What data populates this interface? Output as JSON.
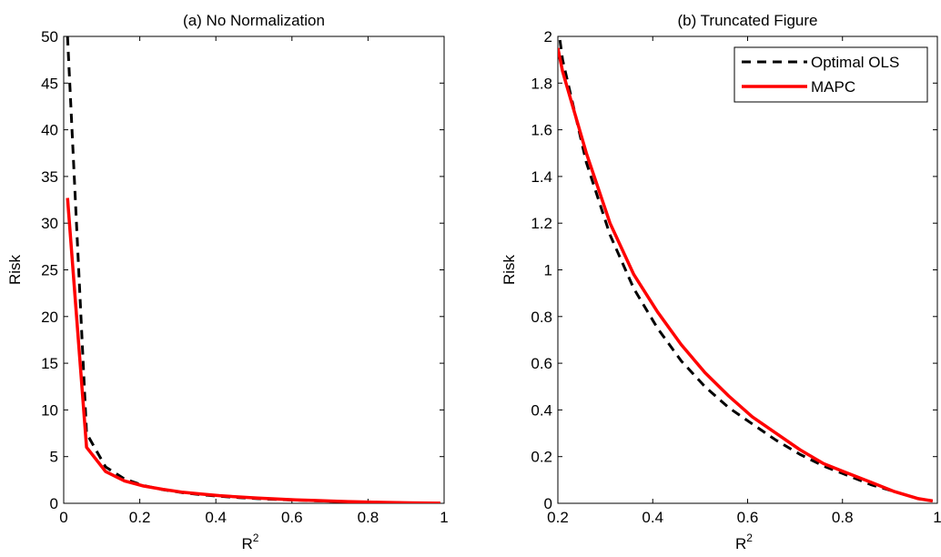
{
  "chart_data": [
    {
      "type": "line",
      "title": "(a) No Normalization",
      "xlabel": "R",
      "xlabel_superscript": "2",
      "ylabel": "Risk",
      "xlim": [
        0,
        1
      ],
      "ylim": [
        0,
        50
      ],
      "xticks": [
        0,
        0.2,
        0.4,
        0.6,
        0.8,
        1
      ],
      "xtick_labels": [
        "0",
        "0.2",
        "0.4",
        "0.6",
        "0.8",
        "1"
      ],
      "yticks": [
        0,
        5,
        10,
        15,
        20,
        25,
        30,
        35,
        40,
        45,
        50
      ],
      "ytick_labels": [
        "0",
        "5",
        "10",
        "15",
        "20",
        "25",
        "30",
        "35",
        "40",
        "45",
        "50"
      ],
      "grid": false,
      "legend": null,
      "series": [
        {
          "name": "Optimal OLS",
          "color": "#000000",
          "style": "dashed",
          "x": [
            0.01,
            0.06,
            0.11,
            0.16,
            0.21,
            0.26,
            0.31,
            0.36,
            0.41,
            0.46,
            0.51,
            0.56,
            0.61,
            0.66,
            0.71,
            0.76,
            0.81,
            0.86,
            0.91,
            0.96,
            0.99
          ],
          "y": [
            50,
            7.5,
            3.9,
            2.6,
            1.9,
            1.46,
            1.15,
            0.92,
            0.75,
            0.61,
            0.5,
            0.41,
            0.34,
            0.27,
            0.21,
            0.16,
            0.12,
            0.08,
            0.05,
            0.02,
            0.01
          ]
        },
        {
          "name": "MAPC",
          "color": "#ff0000",
          "style": "solid",
          "x": [
            0.01,
            0.06,
            0.11,
            0.16,
            0.21,
            0.26,
            0.31,
            0.36,
            0.41,
            0.46,
            0.51,
            0.56,
            0.61,
            0.66,
            0.71,
            0.76,
            0.81,
            0.86,
            0.91,
            0.96,
            0.99
          ],
          "y": [
            32.7,
            6.0,
            3.4,
            2.4,
            1.85,
            1.5,
            1.2,
            1.0,
            0.82,
            0.68,
            0.56,
            0.46,
            0.37,
            0.3,
            0.23,
            0.17,
            0.13,
            0.09,
            0.05,
            0.02,
            0.01
          ]
        }
      ]
    },
    {
      "type": "line",
      "title": "(b) Truncated Figure",
      "xlabel": "R",
      "xlabel_superscript": "2",
      "ylabel": "Risk",
      "xlim": [
        0.2,
        1
      ],
      "ylim": [
        0,
        2
      ],
      "xticks": [
        0.2,
        0.4,
        0.6,
        0.8,
        1
      ],
      "xtick_labels": [
        "0.2",
        "0.4",
        "0.6",
        "0.8",
        "1"
      ],
      "yticks": [
        0,
        0.2,
        0.4,
        0.6,
        0.8,
        1,
        1.2,
        1.4,
        1.6,
        1.8,
        2
      ],
      "ytick_labels": [
        "0",
        "0.2",
        "0.4",
        "0.6",
        "0.8",
        "1",
        "1.2",
        "1.4",
        "1.6",
        "1.8",
        "2"
      ],
      "grid": false,
      "legend": "top-right",
      "series": [
        {
          "name": "Optimal OLS",
          "color": "#000000",
          "style": "dashed",
          "x": [
            0.2,
            0.21,
            0.26,
            0.31,
            0.36,
            0.41,
            0.46,
            0.51,
            0.56,
            0.61,
            0.66,
            0.71,
            0.76,
            0.81,
            0.86,
            0.91,
            0.96,
            0.99
          ],
          "y": [
            2.05,
            1.9,
            1.46,
            1.15,
            0.92,
            0.75,
            0.61,
            0.5,
            0.41,
            0.34,
            0.27,
            0.21,
            0.16,
            0.12,
            0.08,
            0.05,
            0.02,
            0.01
          ]
        },
        {
          "name": "MAPC",
          "color": "#ff0000",
          "style": "solid",
          "x": [
            0.2,
            0.21,
            0.26,
            0.31,
            0.36,
            0.41,
            0.46,
            0.51,
            0.56,
            0.61,
            0.66,
            0.71,
            0.76,
            0.81,
            0.86,
            0.91,
            0.96,
            0.99
          ],
          "y": [
            1.95,
            1.85,
            1.5,
            1.2,
            0.98,
            0.82,
            0.68,
            0.56,
            0.46,
            0.37,
            0.3,
            0.23,
            0.17,
            0.13,
            0.09,
            0.05,
            0.02,
            0.01
          ]
        }
      ]
    }
  ]
}
